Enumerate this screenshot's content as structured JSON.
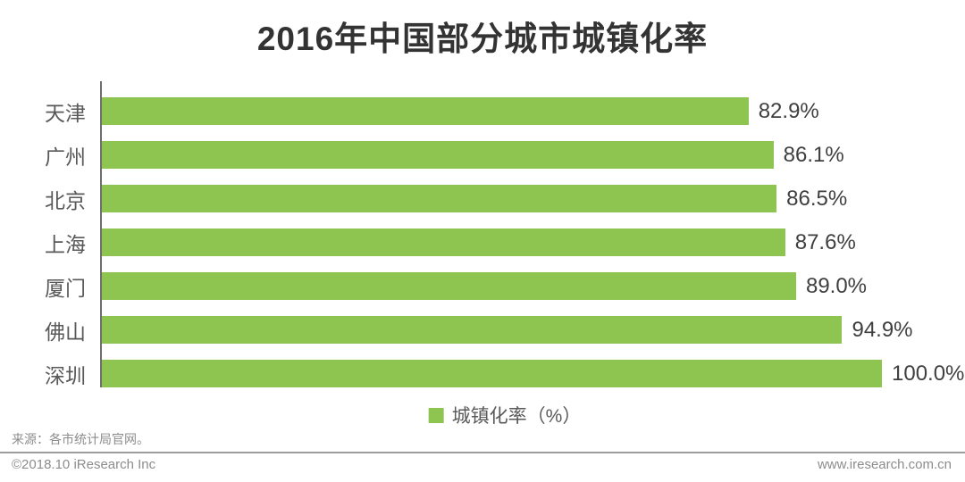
{
  "chart_data": {
    "type": "bar",
    "orientation": "horizontal",
    "title": "2016年中国部分城市城镇化率",
    "categories": [
      "天津",
      "广州",
      "北京",
      "上海",
      "厦门",
      "佛山",
      "深圳"
    ],
    "values": [
      82.9,
      86.1,
      86.5,
      87.6,
      89.0,
      94.9,
      100.0
    ],
    "value_labels": [
      "82.9%",
      "86.1%",
      "86.5%",
      "87.6%",
      "89.0%",
      "94.9%",
      "100.0%"
    ],
    "legend": "城镇化率（%）",
    "xlim": [
      0,
      100
    ],
    "bar_color": "#8dc550",
    "grid": false,
    "legend_position": "bottom-center"
  },
  "footer": {
    "source": "来源：各市统计局官网。",
    "copyright": "©2018.10 iResearch Inc",
    "website": "www.iresearch.com.cn"
  },
  "colors": {
    "bar": "#8dc550",
    "title": "#333333",
    "axis": "#6e6e6e",
    "category_label": "#595959",
    "value_label": "#3f3f3f",
    "footer_text": "#8c8c8c"
  }
}
